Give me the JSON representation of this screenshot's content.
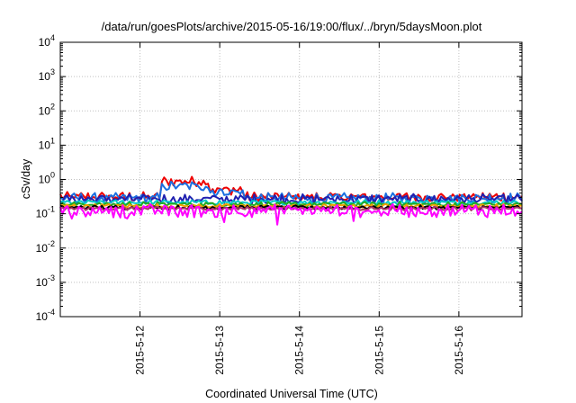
{
  "chart_data": {
    "type": "line",
    "title": "/data/run/goesPlots/archive/2015-05-16/19:00/flux/../bryn/5daysMoon.plot",
    "xlabel": "Coordinated Universal Time (UTC)",
    "ylabel": "cSv/day",
    "yscale": "log",
    "ylim": [
      0.0001,
      10000
    ],
    "y_ticks": [
      {
        "base": "10",
        "exp": "-4"
      },
      {
        "base": "10",
        "exp": "-3"
      },
      {
        "base": "10",
        "exp": "-2"
      },
      {
        "base": "10",
        "exp": "-1"
      },
      {
        "base": "10",
        "exp": "0"
      },
      {
        "base": "10",
        "exp": "1"
      },
      {
        "base": "10",
        "exp": "2"
      },
      {
        "base": "10",
        "exp": "3"
      },
      {
        "base": "10",
        "exp": "4"
      }
    ],
    "xlim": [
      "2015-05-11 00:00",
      "2015-05-16 19:00"
    ],
    "x_ticks": [
      "2015-5-12",
      "2015-5-13",
      "2015-5-14",
      "2015-5-15",
      "2015-5-16"
    ],
    "grid": true,
    "legend": "none",
    "series": [
      {
        "color": "#ee0000",
        "base": 0.3,
        "noise": 0.12,
        "events": [
          {
            "start": "2015-05-12 06:00",
            "end": "2015-05-12 21:00",
            "value": 0.85
          },
          {
            "start": "2015-05-12 21:00",
            "end": "2015-05-13 07:00",
            "value": 0.48
          }
        ]
      },
      {
        "color": "#1a6fe0",
        "base": 0.28,
        "noise": 0.12,
        "events": [
          {
            "start": "2015-05-12 06:00",
            "end": "2015-05-12 21:00",
            "value": 0.62
          },
          {
            "start": "2015-05-12 21:00",
            "end": "2015-05-13 07:00",
            "value": 0.42
          }
        ]
      },
      {
        "color": "#2020b0",
        "base": 0.26,
        "noise": 0.12,
        "events": []
      },
      {
        "color": "#00c8c8",
        "base": 0.21,
        "noise": 0.06,
        "events": []
      },
      {
        "color": "#22aa22",
        "base": 0.185,
        "noise": 0.06,
        "events": []
      },
      {
        "color": "#f0a000",
        "base": 0.165,
        "noise": 0.05,
        "events": []
      },
      {
        "color": "#000000",
        "base": 0.15,
        "noise": 0.05,
        "events": []
      },
      {
        "color": "#aa3366",
        "base": 0.14,
        "noise": 0.05,
        "events": []
      },
      {
        "color": "#ff00ff",
        "base": 0.12,
        "noise": 0.16,
        "dips": true,
        "events": []
      }
    ]
  }
}
